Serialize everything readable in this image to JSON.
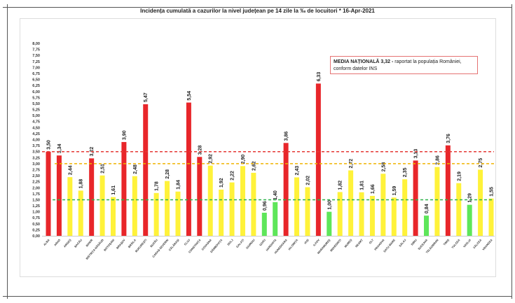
{
  "chart_data": {
    "type": "bar",
    "title": "Incidența cumulată a cazurilor la nivel județean pe 14 zile   la ‰ de locuitori  *   16-Apr-2021",
    "xlabel": "",
    "ylabel": "",
    "ylim": [
      0,
      8
    ],
    "ytick_step": 0.25,
    "grid": false,
    "categories": [
      "ALBA",
      "ARAD",
      "ARGEȘ",
      "BACĂU",
      "BIHOR",
      "BISTRIȚA-NĂSĂUD",
      "BOTOȘANI",
      "BRAȘOV",
      "BRĂILA",
      "BUCUREȘTI",
      "BUZĂU",
      "CARAȘ-SEVERIN",
      "CĂLĂRAȘI",
      "CLUJ",
      "CONSTANȚA",
      "COVASNA",
      "DÂMBOVIȚA",
      "DOLJ",
      "GALAȚI",
      "GIURGIU",
      "GORJ",
      "HARGHITA",
      "HUNEDOARA",
      "IALOMIȚA",
      "IAȘI",
      "ILFOV",
      "MARAMUREȘ",
      "MEHEDINȚI",
      "MUREȘ",
      "NEAMȚ",
      "OLT",
      "PRAHOVA",
      "SATU MARE",
      "SĂLAJ",
      "SIBIU",
      "SUCEAVA",
      "TELEORMAN",
      "TIMIȘ",
      "TULCEA",
      "VASLUI",
      "VÂLCEA",
      "VRANCEA"
    ],
    "values": [
      3.5,
      3.34,
      2.44,
      1.88,
      3.22,
      2.51,
      1.61,
      3.9,
      2.48,
      5.47,
      1.78,
      2.28,
      1.84,
      5.54,
      3.28,
      2.92,
      1.92,
      2.22,
      2.9,
      2.62,
      0.96,
      1.4,
      3.86,
      2.43,
      2.02,
      6.33,
      1.0,
      1.82,
      2.72,
      1.81,
      1.66,
      2.58,
      1.59,
      2.35,
      3.13,
      0.84,
      2.86,
      3.76,
      2.19,
      1.29,
      2.75,
      1.55
    ],
    "decimal_separator": ",",
    "reference_lines": [
      {
        "value": 3.5,
        "color": "#e53935",
        "style": "dashed"
      },
      {
        "value": 3.0,
        "color": "#f0b400",
        "style": "dashed"
      },
      {
        "value": 1.5,
        "color": "#2db34a",
        "style": "dashed"
      }
    ],
    "colors": {
      "high": "#e8262a",
      "medium": "#fff23a",
      "low": "#5ee65a"
    },
    "annotation": {
      "bold": "MEDIA NAȚIONALĂ 3,32 -",
      "text": " raportat la populația României, conform datelor INS",
      "border_color": "#e57373"
    }
  }
}
